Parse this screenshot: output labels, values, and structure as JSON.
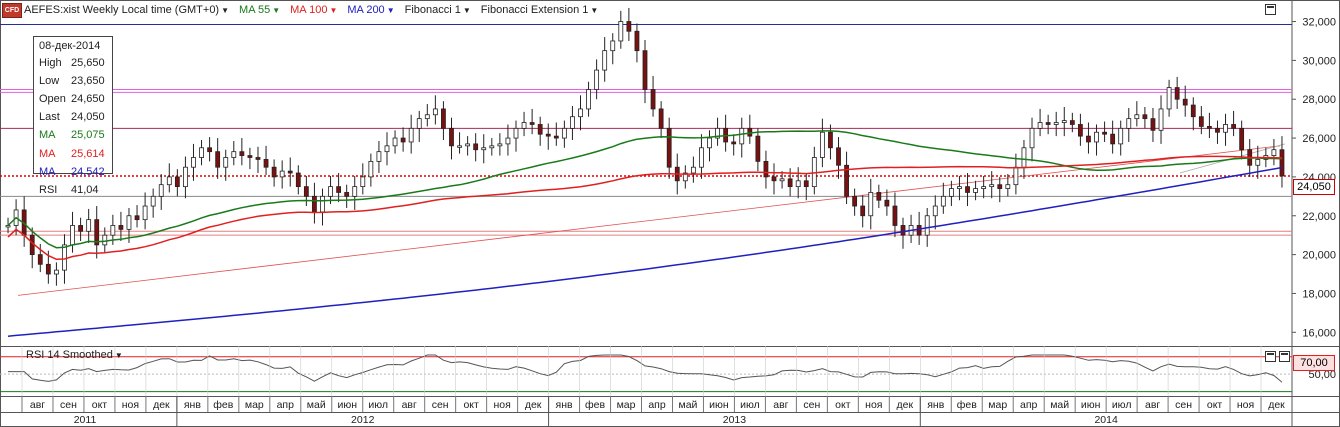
{
  "header": {
    "badge": "CFD",
    "symbol": "AEFES:xist Weekly Local time (GMT+0)",
    "indicators": [
      {
        "label": "MA 55",
        "color": "#1a7a1a"
      },
      {
        "label": "MA 100",
        "color": "#e02020"
      },
      {
        "label": "MA 200",
        "color": "#2020c0"
      },
      {
        "label": "Fibonacci 1",
        "color": "#222222"
      },
      {
        "label": "Fibonacci Extension 1",
        "color": "#222222"
      }
    ]
  },
  "info_box": {
    "date": "08-дек-2014",
    "rows": [
      {
        "key": "High",
        "value": "25,650",
        "color": "#222222"
      },
      {
        "key": "Low",
        "value": "23,650",
        "color": "#222222"
      },
      {
        "key": "Open",
        "value": "24,650",
        "color": "#222222"
      },
      {
        "key": "Last",
        "value": "24,050",
        "color": "#222222"
      },
      {
        "key": "MA",
        "value": "25,075",
        "color": "#1a7a1a"
      },
      {
        "key": "MA",
        "value": "25,614",
        "color": "#e02020"
      },
      {
        "key": "MA",
        "value": "24,542",
        "color": "#2020c0"
      },
      {
        "key": "RSI",
        "value": "41,04",
        "color": "#222222"
      }
    ]
  },
  "price_tags": {
    "last": "24,050",
    "rsi_level": "70,00"
  },
  "rsi_panel": {
    "label": "RSI 14 Smoothed"
  },
  "chart_data": {
    "type": "candlestick",
    "y_axis": {
      "ticks": [
        "32,000",
        "30,000",
        "28,000",
        "26,000",
        "24,000",
        "22,000",
        "20,000",
        "18,000",
        "16,000"
      ],
      "min": 15500,
      "max": 32800
    },
    "rsi_axis": {
      "ticks": [
        "50,00"
      ],
      "levels": [
        70,
        50,
        30
      ]
    },
    "months": [
      "авг",
      "сен",
      "окт",
      "ноя",
      "дек",
      "янв",
      "фев",
      "мар",
      "апр",
      "май",
      "июн",
      "июл",
      "авг",
      "сен",
      "окт",
      "ноя",
      "дек",
      "янв",
      "фев",
      "мар",
      "апр",
      "май",
      "июн",
      "июл",
      "авг",
      "сен",
      "окт",
      "ноя",
      "дек",
      "янв",
      "фев",
      "мар",
      "апр",
      "май",
      "июн",
      "июл",
      "авг",
      "сен",
      "окт",
      "ноя",
      "дек"
    ],
    "years": [
      "2011",
      "2012",
      "2013",
      "2014"
    ],
    "horizontal_lines": [
      {
        "y": 31850,
        "color": "#2a2a9a"
      },
      {
        "y": 28500,
        "color": "#e060e0"
      },
      {
        "y": 28350,
        "color": "#e060e0"
      },
      {
        "y": 26500,
        "color": "#aa2a5a"
      },
      {
        "y": 23000,
        "color": "#888888"
      },
      {
        "y": 21200,
        "color": "#e08080"
      },
      {
        "y": 21000,
        "color": "#e08080"
      }
    ],
    "last_price_line": 24050,
    "close_series": [
      21.5,
      22.3,
      21,
      20,
      19.5,
      19,
      19.2,
      20.5,
      21.5,
      21.2,
      21.8,
      20.5,
      21,
      21.5,
      21.3,
      22,
      21.8,
      22.5,
      23,
      23.6,
      24,
      23.5,
      24.5,
      25,
      25.5,
      25.3,
      24.5,
      25,
      25.3,
      25.1,
      25,
      24.9,
      24.5,
      24,
      24.3,
      24.2,
      23.5,
      23,
      22.2,
      23,
      23.5,
      23.2,
      23,
      23.5,
      24,
      24.8,
      25.3,
      25.6,
      26,
      25.8,
      26.5,
      27,
      27.2,
      27.5,
      26.5,
      25.6,
      25.6,
      25.7,
      25.4,
      25.5,
      25.6,
      25.7,
      26,
      26.5,
      26.8,
      26.7,
      26.2,
      26.1,
      26,
      26.5,
      27.1,
      27.5,
      28.5,
      29.5,
      30.5,
      31,
      32,
      31.5,
      30.5,
      28.5,
      27.5,
      26.5,
      24.5,
      23.8,
      24.2,
      24.5,
      25.5,
      26,
      26.5,
      25.8,
      25.7,
      26.5,
      26.1,
      24.8,
      24,
      23.8,
      23.9,
      23.5,
      23.8,
      23.5,
      25,
      26.3,
      25.5,
      24.6,
      23,
      22.5,
      22,
      23.2,
      22.8,
      22.5,
      21.5,
      21,
      21.5,
      21,
      22,
      22.5,
      23,
      23.4,
      23.5,
      23.2,
      23.4,
      23.5,
      23.6,
      23.4,
      23.6,
      24.5,
      25.5,
      26.5,
      26.8,
      26.7,
      26.8,
      26.9,
      26.7,
      26.1,
      25.8,
      26.3,
      26.2,
      25.7,
      26.5,
      27,
      27.2,
      27,
      26.4,
      27.5,
      28.6,
      28,
      27.7,
      27.1,
      26.6,
      26.5,
      26.3,
      26.7,
      26.5,
      25.4,
      24.6,
      24.9,
      25.1,
      25.4,
      24.05
    ],
    "ma55": [],
    "ma100": [],
    "ma200": [],
    "rsi": []
  }
}
